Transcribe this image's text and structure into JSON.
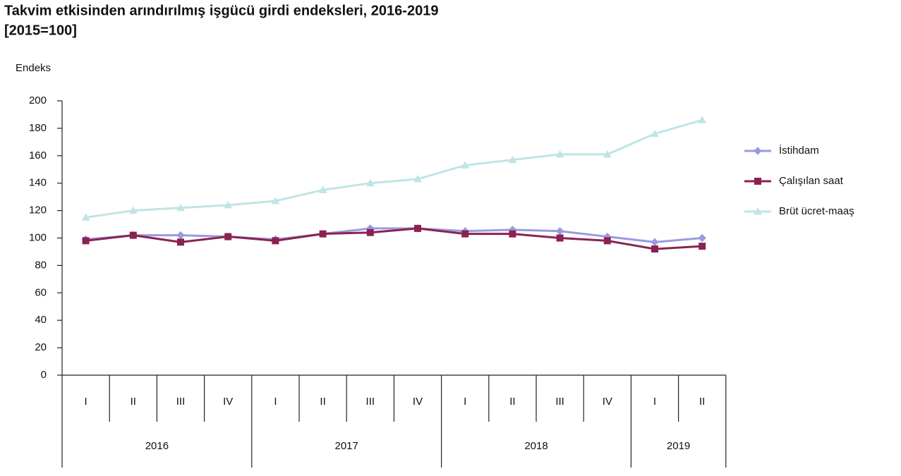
{
  "chart_data": {
    "type": "line",
    "title": "Takvim etkisinden arındırılmış işgücü girdi endeksleri, 2016-2019",
    "subtitle": "[2015=100]",
    "y_label": "Endeks",
    "category_groups": [
      {
        "year": "2016",
        "quarters": [
          "I",
          "II",
          "III",
          "IV"
        ]
      },
      {
        "year": "2017",
        "quarters": [
          "I",
          "II",
          "III",
          "IV"
        ]
      },
      {
        "year": "2018",
        "quarters": [
          "I",
          "II",
          "III",
          "IV"
        ]
      },
      {
        "year": "2019",
        "quarters": [
          "I",
          "II"
        ]
      }
    ],
    "series": [
      {
        "name": "İstihdam",
        "color": "#9a9ae0",
        "marker": "diamond",
        "values": [
          99,
          102,
          102,
          101,
          99,
          103,
          107,
          107,
          105,
          106,
          105,
          101,
          97,
          100
        ]
      },
      {
        "name": "Çalışılan saat",
        "color": "#8b2252",
        "marker": "square",
        "values": [
          98,
          102,
          97,
          101,
          98,
          103,
          104,
          107,
          103,
          103,
          100,
          98,
          92,
          94
        ]
      },
      {
        "name": "Brüt ücret-maaş",
        "color": "#bfe5e5",
        "marker": "triangle",
        "values": [
          115,
          120,
          122,
          124,
          127,
          135,
          140,
          143,
          153,
          157,
          161,
          161,
          176,
          186
        ]
      }
    ],
    "ylim": [
      0,
      200
    ],
    "yticks": [
      0,
      20,
      40,
      60,
      80,
      100,
      120,
      140,
      160,
      180,
      200
    ],
    "grid": false,
    "legend": "right"
  }
}
